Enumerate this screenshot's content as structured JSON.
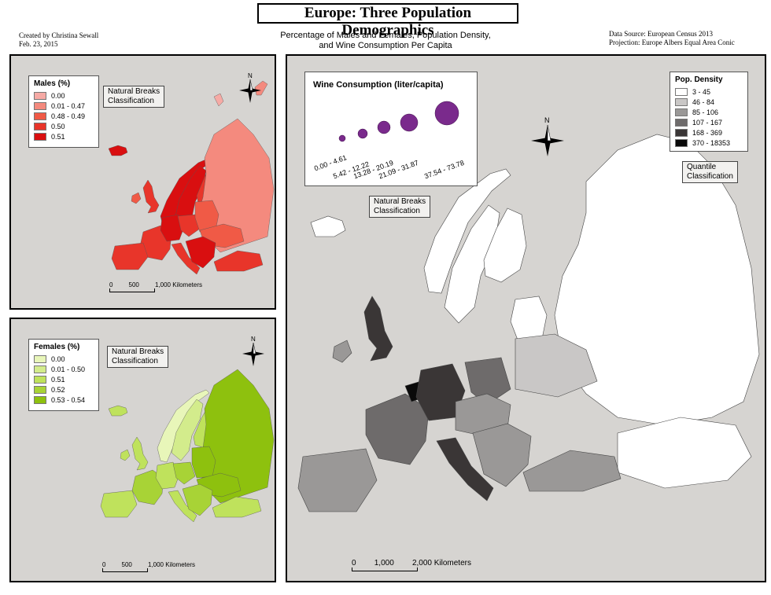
{
  "title": "Europe: Three Population Demographics",
  "subtitle": [
    "Percentage of Males and Females, Population Density,",
    "and Wine Consumption Per Capita"
  ],
  "credits": {
    "author": "Created by Christina Sewall",
    "date": "Feb. 23, 2015"
  },
  "source": {
    "data": "Data Source: European Census 2013",
    "projection": "Projection: Europe Albers Equal Area Conic"
  },
  "males_map": {
    "legend_title": "Males (%)",
    "classes": [
      {
        "label": "0.00",
        "color": "#f6aaa5"
      },
      {
        "label": "0.01 - 0.47",
        "color": "#f48a7e"
      },
      {
        "label": "0.48 - 0.49",
        "color": "#f05a46"
      },
      {
        "label": "0.50",
        "color": "#e8352a"
      },
      {
        "label": "0.51",
        "color": "#d90f10"
      }
    ],
    "classification": [
      "Natural Breaks",
      "Classification"
    ],
    "compass_letter": "N",
    "scale": {
      "ticks": [
        "0",
        "500",
        "1,000 Kilometers"
      ]
    }
  },
  "females_map": {
    "legend_title": "Females (%)",
    "classes": [
      {
        "label": "0.00",
        "color": "#e8f6b9"
      },
      {
        "label": "0.01 - 0.50",
        "color": "#d3ec8c"
      },
      {
        "label": "0.51",
        "color": "#bfe25c"
      },
      {
        "label": "0.52",
        "color": "#a8d336"
      },
      {
        "label": "0.53 - 0.54",
        "color": "#8ec10e"
      }
    ],
    "classification": [
      "Natural Breaks",
      "Classification"
    ],
    "compass_letter": "N",
    "scale": {
      "ticks": [
        "0",
        "500",
        "1,000 Kilometers"
      ]
    }
  },
  "main_map": {
    "wine_legend": {
      "title": "Wine Consumption (liter/capita)",
      "classes": [
        "0.00 - 4.61",
        "5.42 - 12.22",
        "13.28 - 20.19",
        "21.09 - 31.87",
        "37.54 - 73.78"
      ],
      "color": "#7a2a8c"
    },
    "wine_classification": [
      "Natural Breaks",
      "Classification"
    ],
    "density_legend": {
      "title": "Pop. Density",
      "classes": [
        {
          "label": "3 - 45",
          "color": "#ffffff"
        },
        {
          "label": "46 - 84",
          "color": "#c9c7c6"
        },
        {
          "label": "85 - 106",
          "color": "#9a9897"
        },
        {
          "label": "107 - 167",
          "color": "#6e6b6b"
        },
        {
          "label": "168 - 369",
          "color": "#3a3636"
        },
        {
          "label": "370 - 18353",
          "color": "#0a0a0a"
        }
      ]
    },
    "density_classification": [
      "Quantile",
      "Classification"
    ],
    "compass_letter": "N",
    "scale": {
      "ticks": [
        "0",
        "1,000",
        "2,000 Kilometers"
      ]
    }
  }
}
